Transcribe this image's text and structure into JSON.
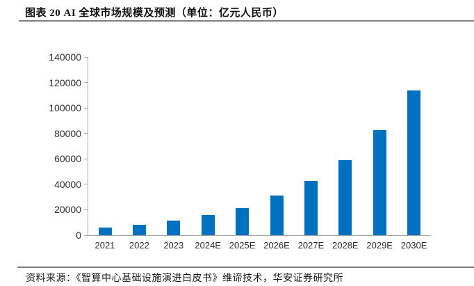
{
  "header": {
    "title": "图表 20 AI 全球市场规模及预测（单位：亿元人民币）"
  },
  "footer": {
    "source": "资料来源：《智算中心基础设施演进白皮书》维谛技术，华安证券研究所"
  },
  "chart_data": {
    "type": "bar",
    "title": "AI 全球市场规模及预测",
    "unit": "亿元人民币",
    "categories": [
      "2021",
      "2022",
      "2023",
      "2024E",
      "2025E",
      "2026E",
      "2027E",
      "2028E",
      "2029E",
      "2030E"
    ],
    "values": [
      6000,
      8000,
      11500,
      16000,
      21500,
      31000,
      42500,
      59000,
      82500,
      114000
    ],
    "xlabel": "",
    "ylabel": "",
    "ylim": [
      0,
      140000
    ],
    "yticks": [
      0,
      20000,
      40000,
      60000,
      80000,
      100000,
      120000,
      140000
    ],
    "grid": false,
    "legend": false,
    "bar_color": "#0070C0",
    "axis_color": "#A6A6A6",
    "tick_label_color": "#2E2E2E"
  }
}
